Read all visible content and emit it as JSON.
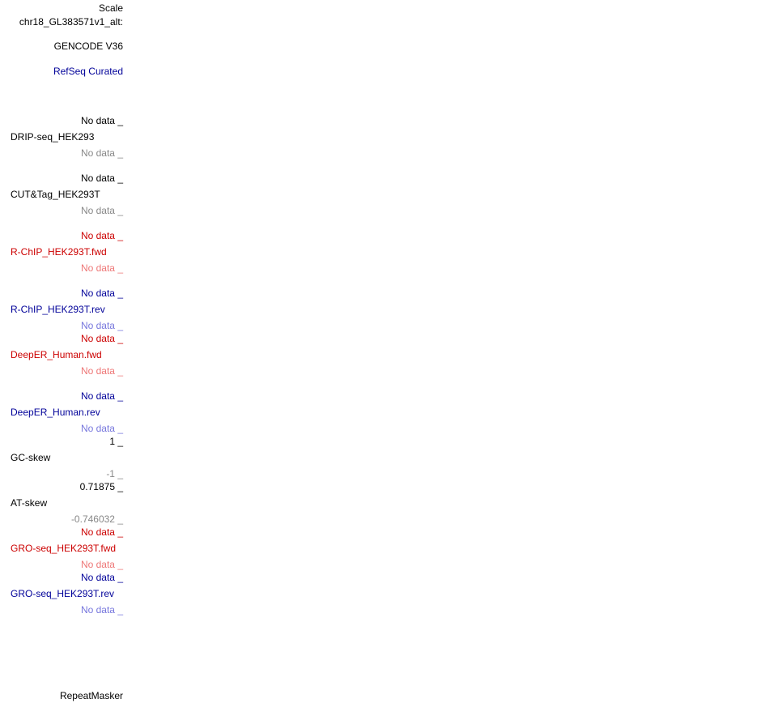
{
  "colors": {
    "black": "#000000",
    "gray": "#888888",
    "red": "#cc0000",
    "light_red": "#ee7777",
    "blue": "#000099",
    "light_blue": "#7777dd"
  },
  "header": {
    "scale": "Scale",
    "chrom": "chr18_GL383571v1_alt:"
  },
  "tracks": {
    "gencode": "GENCODE V36",
    "refseq": "RefSeq Curated",
    "drip": {
      "max": "No data _",
      "name": "DRIP-seq_HEK293",
      "min": "No data _"
    },
    "cuttag": {
      "max": "No data _",
      "name": "CUT&Tag_HEK293T",
      "min": "No data _"
    },
    "rchip_fwd": {
      "max": "No data _",
      "name": "R-ChIP_HEK293T.fwd",
      "min": "No data _"
    },
    "rchip_rev": {
      "max": "No data _",
      "name": "R-ChIP_HEK293T.rev",
      "min": "No data _"
    },
    "deeper_fwd": {
      "max": "No data _",
      "name": "DeepER_Human.fwd",
      "min": "No data _"
    },
    "deeper_rev": {
      "max": "No data _",
      "name": "DeepER_Human.rev",
      "min": "No data _"
    },
    "gcskew": {
      "max": "1 _",
      "name": "GC-skew",
      "min": "-1 _"
    },
    "atskew": {
      "max": "0.71875 _",
      "name": "AT-skew",
      "min": "-0.746032 _"
    },
    "gro_fwd": {
      "max": "No data _",
      "name": "GRO-seq_HEK293T.fwd",
      "min": "No data _"
    },
    "gro_rev": {
      "max": "No data _",
      "name": "GRO-seq_HEK293T.rev",
      "min": "No data _"
    },
    "repeatmasker": "RepeatMasker"
  }
}
